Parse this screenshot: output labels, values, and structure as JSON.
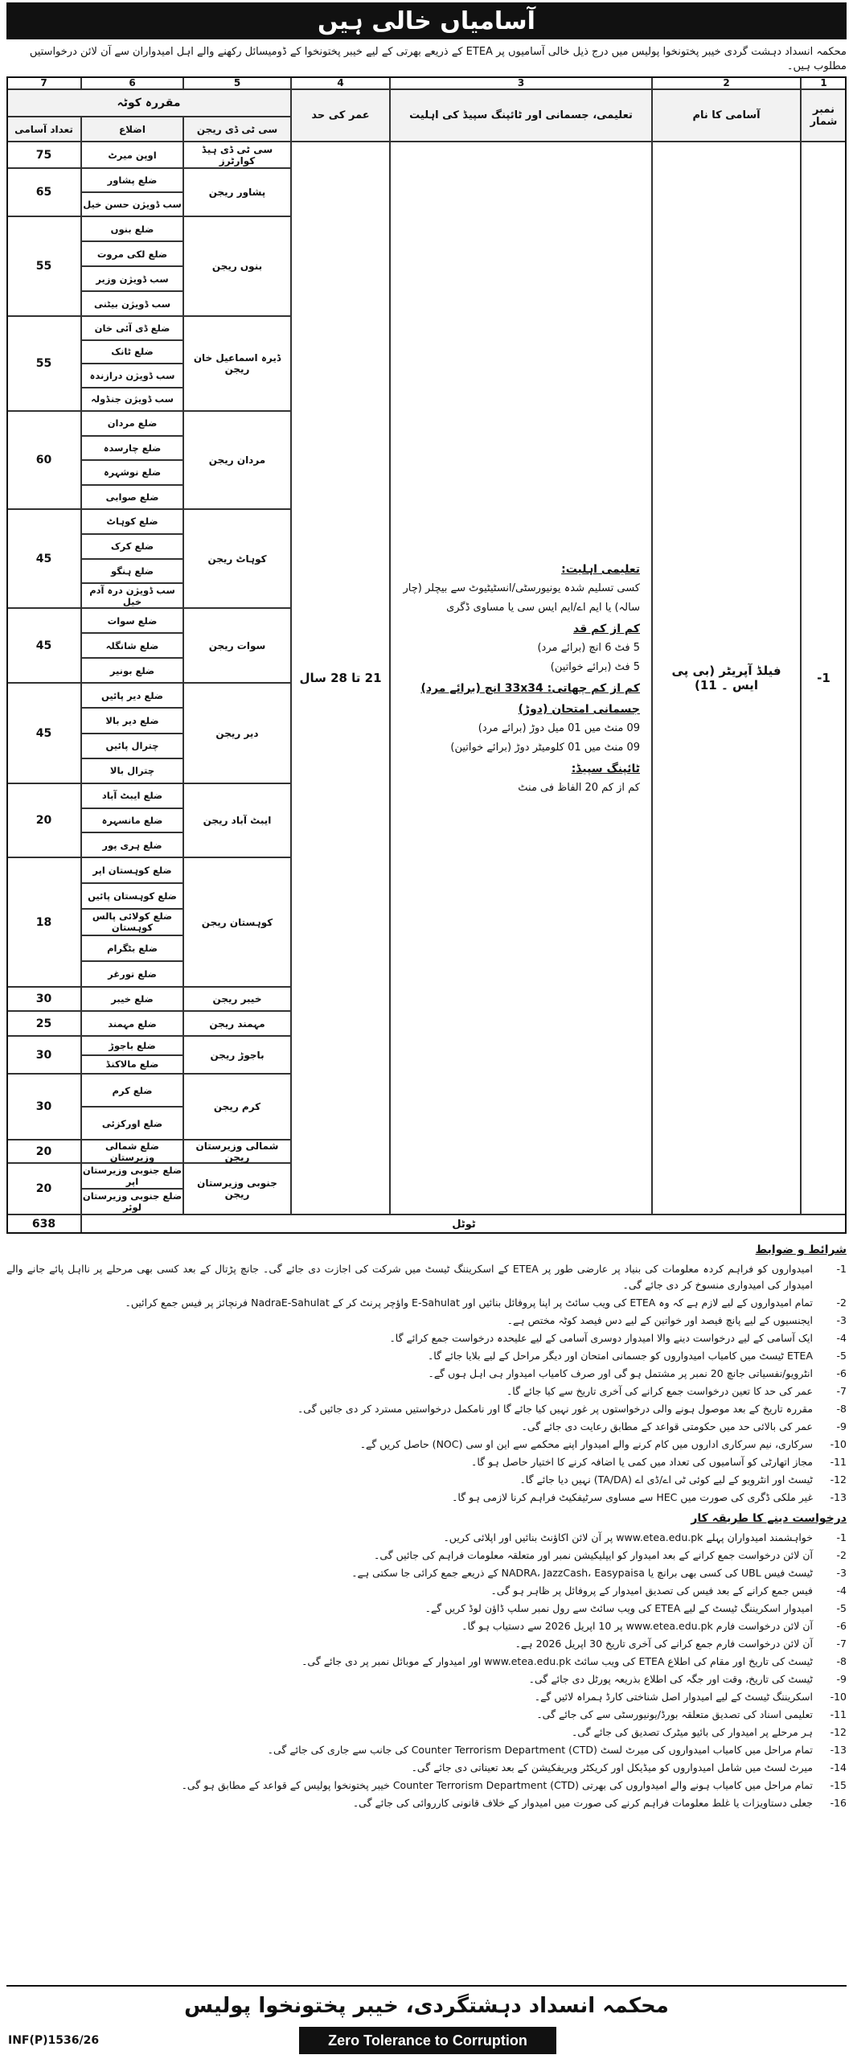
{
  "header": {
    "title": "آسامیاں خالی ہیں",
    "intro": "محکمہ انسداد دہشت گردی خیبر پختونخوا پولیس میں درج ذیل خالی آسامیوں پر ETEA کے ذریعے بھرتی کے لیے خیبر پختونخوا کے ڈومیسائل رکھنے والے اہل امیدواران سے آن لائن درخواستیں مطلوب ہیں۔"
  },
  "table": {
    "column_numbers": [
      "1",
      "2",
      "3",
      "4",
      "5",
      "6",
      "7"
    ],
    "columns": {
      "serial": "نمبر شمار",
      "post": "آسامی کا نام",
      "qualification": "تعلیمی، جسمانی اور ٹائپنگ سپیڈ کی اہلیت",
      "age": "عمر کی حد",
      "quota": "مقررہ کوٹہ",
      "region": "سی ٹی ڈی ریجن",
      "district": "اضلاع",
      "count": "تعداد آسامی"
    },
    "post": {
      "serial": "-1",
      "name": "فیلڈ آپریٹر (بی پی ایس ۔ 11)",
      "age": "21 تا 28 سال",
      "qualification": [
        {
          "heading": "تعلیمی اہلیت:",
          "lines": [
            "کسی تسلیم شدہ یونیورسٹی/انسٹیٹیوٹ سے بیچلر (چار سالہ) یا ایم اے/ایم ایس سی یا مساوی ڈگری"
          ]
        },
        {
          "heading": "کم از کم قد",
          "lines": [
            "5 فٹ 6 انچ (برائے مرد)",
            "5 فٹ (برائے خواتین)"
          ]
        },
        {
          "heading": "کم از کم چھاتی: 33x34 انچ (برائے مرد)",
          "lines": []
        },
        {
          "heading": "جسمانی امتحان (دوڑ)",
          "lines": [
            "09 منٹ میں 01 میل دوڑ (برائے مرد)",
            "09 منٹ میں 01 کلومیٹر دوڑ (برائے خواتین)"
          ]
        },
        {
          "heading": "ٹائپنگ سپیڈ:",
          "lines": [
            "کم از کم 20 الفاظ فی منٹ"
          ]
        }
      ]
    },
    "regions": [
      {
        "name": "سی ٹی ڈی ہیڈ کوارٹرز",
        "districts": [
          "اوپن میرٹ"
        ],
        "count": 75
      },
      {
        "name": "پشاور ریجن",
        "districts": [
          "ضلع پشاور",
          "سب ڈویژن حسن خیل"
        ],
        "count": 65
      },
      {
        "name": "بنوں ریجن",
        "districts": [
          "ضلع بنوں",
          "ضلع لکی مروت",
          "سب ڈویژن وزیر",
          "سب ڈویژن بیٹنی"
        ],
        "count": 55
      },
      {
        "name": "ڈیرہ اسماعیل خان ریجن",
        "districts": [
          "ضلع ڈی آئی خان",
          "ضلع ٹانک",
          "سب ڈویژن درازندہ",
          "سب ڈویژن جنڈولہ"
        ],
        "count": 55
      },
      {
        "name": "مردان ریجن",
        "districts": [
          "ضلع مردان",
          "ضلع چارسدہ",
          "ضلع نوشہرہ",
          "ضلع صوابی"
        ],
        "count": 60
      },
      {
        "name": "کوہاٹ ریجن",
        "districts": [
          "ضلع کوہاٹ",
          "ضلع کرک",
          "ضلع ہنگو",
          "سب ڈویژن درہ آدم خیل"
        ],
        "count": 45
      },
      {
        "name": "سوات ریجن",
        "districts": [
          "ضلع سوات",
          "ضلع شانگلہ",
          "ضلع بونیر"
        ],
        "count": 45
      },
      {
        "name": "دیر ریجن",
        "districts": [
          "ضلع دیر پائیں",
          "ضلع دیر بالا",
          "چترال پائیں",
          "چترال بالا"
        ],
        "count": 45
      },
      {
        "name": "ایبٹ آباد ریجن",
        "districts": [
          "ضلع ایبٹ آباد",
          "ضلع مانسہرہ",
          "ضلع ہری پور"
        ],
        "count": 20
      },
      {
        "name": "کوہستان ریجن",
        "districts": [
          "ضلع کوہستان اپر",
          "ضلع کوہستان پائیں",
          "ضلع کولائی پالس کوہستان",
          "ضلع بٹگرام",
          "ضلع تورغر"
        ],
        "count": 18
      },
      {
        "name": "خیبر ریجن",
        "districts": [
          "ضلع خیبر"
        ],
        "count": 30
      },
      {
        "name": "مہمند ریجن",
        "districts": [
          "ضلع مہمند"
        ],
        "count": 25
      },
      {
        "name": "باجوڑ ریجن",
        "districts": [
          "ضلع باجوڑ",
          "ضلع مالاکنڈ"
        ],
        "count": 30
      },
      {
        "name": "کرم ریجن",
        "districts": [
          "ضلع کرم",
          "ضلع اورکزئی"
        ],
        "count": 30
      },
      {
        "name": "شمالی وزیرستان ریجن",
        "districts": [
          "ضلع شمالی وزیرستان"
        ],
        "count": 20
      },
      {
        "name": "جنوبی وزیرستان ریجن",
        "districts": [
          "ضلع جنوبی وزیرستان اپر",
          "ضلع جنوبی وزیرستان لوئر"
        ],
        "count": 20
      }
    ],
    "total_label": "ٹوٹل",
    "total": 638
  },
  "conditions": {
    "title": "شرائط و ضوابط",
    "items": [
      {
        "n": "-1",
        "text": "امیدواروں کو فراہم کردہ معلومات کی بنیاد پر عارضی طور پر ETEA کے اسکریننگ ٹیسٹ میں شرکت کی اجازت دی جائے گی۔ جانچ پڑتال کے بعد کسی بھی مرحلے پر نااہل پائے جانے والے امیدوار کی امیدواری منسوخ کر دی جائے گی۔"
      },
      {
        "n": "-2",
        "text": "تمام امیدواروں کے لیے لازم ہے کہ وہ ETEA کی ویب سائٹ پر اپنا پروفائل بنائیں اور E-Sahulat واؤچر پرنٹ کر کے NadraE-Sahulat فرنچائز پر فیس جمع کرائیں۔"
      },
      {
        "n": "-3",
        "text": "ایجنسیوں کے لیے پانچ فیصد اور خواتین کے لیے دس فیصد کوٹہ مختص ہے۔"
      },
      {
        "n": "-4",
        "text": "ایک آسامی کے لیے درخواست دینے والا امیدوار دوسری آسامی کے لیے علیحدہ درخواست جمع کرائے گا۔"
      },
      {
        "n": "-5",
        "text": "ETEA ٹیسٹ میں کامیاب امیدواروں کو جسمانی امتحان اور دیگر مراحل کے لیے بلایا جائے گا۔"
      },
      {
        "n": "-6",
        "text": "انٹرویو/نفسیاتی جانچ 20 نمبر پر مشتمل ہو گی اور صرف کامیاب امیدوار ہی اہل ہوں گے۔"
      },
      {
        "n": "-7",
        "text": "عمر کی حد کا تعین درخواست جمع کرانے کی آخری تاریخ سے کیا جائے گا۔"
      },
      {
        "n": "-8",
        "text": "مقررہ تاریخ کے بعد موصول ہونے والی درخواستوں پر غور نہیں کیا جائے گا اور نامکمل درخواستیں مسترد کر دی جائیں گی۔"
      },
      {
        "n": "-9",
        "text": "عمر کی بالائی حد میں حکومتی قواعد کے مطابق رعایت دی جائے گی۔"
      },
      {
        "n": "-10",
        "text": "سرکاری، نیم سرکاری اداروں میں کام کرنے والے امیدوار اپنے محکمے سے این او سی (NOC) حاصل کریں گے۔"
      },
      {
        "n": "-11",
        "text": "مجاز اتھارٹی کو آسامیوں کی تعداد میں کمی یا اضافہ کرنے کا اختیار حاصل ہو گا۔"
      },
      {
        "n": "-12",
        "text": "ٹیسٹ اور انٹرویو کے لیے کوئی ٹی اے/ڈی اے (TA/DA) نہیں دیا جائے گا۔"
      },
      {
        "n": "-13",
        "text": "غیر ملکی ڈگری کی صورت میں HEC سے مساوی سرٹیفکیٹ فراہم کرنا لازمی ہو گا۔"
      }
    ]
  },
  "procedure": {
    "title": "درخواست دینے کا طریقہ کار",
    "items": [
      {
        "n": "-1",
        "text": "خواہشمند امیدواران پہلے www.etea.edu.pk پر آن لائن اکاؤنٹ بنائیں اور اپلائی کریں۔"
      },
      {
        "n": "-2",
        "text": "آن لائن درخواست جمع کرانے کے بعد امیدوار کو ایپلیکیشن نمبر اور متعلقہ معلومات فراہم کی جائیں گی۔"
      },
      {
        "n": "-3",
        "text": "ٹیسٹ فیس UBL کی کسی بھی برانچ یا NADRA، JazzCash، Easypaisa کے ذریعے جمع کرائی جا سکتی ہے۔"
      },
      {
        "n": "-4",
        "text": "فیس جمع کرانے کے بعد فیس کی تصدیق امیدوار کے پروفائل پر ظاہر ہو گی۔"
      },
      {
        "n": "-5",
        "text": "امیدوار اسکریننگ ٹیسٹ کے لیے ETEA کی ویب سائٹ سے رول نمبر سلپ ڈاؤن لوڈ کریں گے۔"
      },
      {
        "n": "-6",
        "text": "آن لائن درخواست فارم www.etea.edu.pk پر 10 اپریل 2026 سے دستیاب ہو گا۔"
      },
      {
        "n": "-7",
        "text": "آن لائن درخواست فارم جمع کرانے کی آخری تاریخ 30 اپریل 2026 ہے۔"
      },
      {
        "n": "-8",
        "text": "ٹیسٹ کی تاریخ اور مقام کی اطلاع ETEA کی ویب سائٹ www.etea.edu.pk اور امیدوار کے موبائل نمبر پر دی جائے گی۔"
      },
      {
        "n": "-9",
        "text": "ٹیسٹ کی تاریخ، وقت اور جگہ کی اطلاع بذریعہ پورٹل دی جائے گی۔"
      },
      {
        "n": "-10",
        "text": "اسکریننگ ٹیسٹ کے لیے امیدوار اصل شناختی کارڈ ہمراہ لائیں گے۔"
      },
      {
        "n": "-11",
        "text": "تعلیمی اسناد کی تصدیق متعلقہ بورڈ/یونیورسٹی سے کی جائے گی۔"
      },
      {
        "n": "-12",
        "text": "ہر مرحلے پر امیدوار کی بائیو میٹرک تصدیق کی جائے گی۔"
      },
      {
        "n": "-13",
        "text": "تمام مراحل میں کامیاب امیدواروں کی میرٹ لسٹ Counter Terrorism Department (CTD) کی جانب سے جاری کی جائے گی۔"
      },
      {
        "n": "-14",
        "text": "میرٹ لسٹ میں شامل امیدواروں کو میڈیکل اور کریکٹر ویریفکیشن کے بعد تعیناتی دی جائے گی۔"
      },
      {
        "n": "-15",
        "text": "تمام مراحل میں کامیاب ہونے والے امیدواروں کی بھرتی Counter Terrorism Department (CTD) خیبر پختونخوا پولیس کے قواعد کے مطابق ہو گی۔"
      },
      {
        "n": "-16",
        "text": "جعلی دستاویزات یا غلط معلومات فراہم کرنے کی صورت میں امیدوار کے خلاف قانونی کارروائی کی جائے گی۔"
      }
    ]
  },
  "footer": {
    "department": "محکمہ انسداد دہشتگردی، خیبر پختونخوا پولیس",
    "slogan": "Zero Tolerance to Corruption",
    "ref": "INF(P)1536/26"
  }
}
